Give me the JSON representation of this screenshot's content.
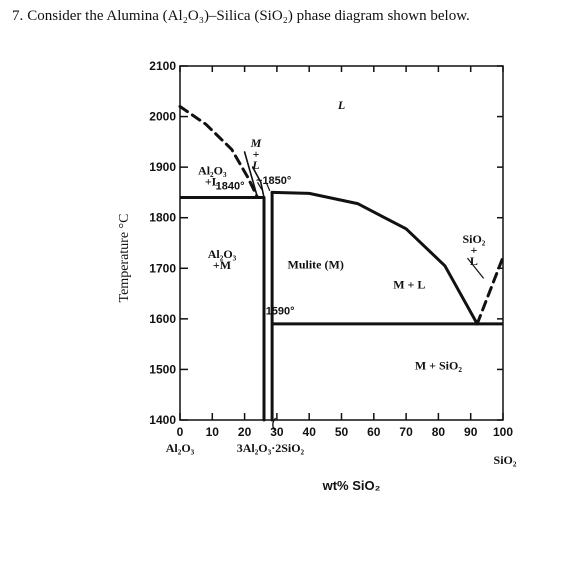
{
  "question": {
    "number": "7.",
    "text": "Consider the Alumina (Al₂O₃)–Silica (SiO₂) phase diagram shown below."
  },
  "chart_data": {
    "type": "phase-diagram",
    "xlabel": "wt% SiO₂",
    "ylabel": "Temperature °C",
    "xlim": [
      0,
      100
    ],
    "ylim": [
      1400,
      2100
    ],
    "x_ticks": [
      "0",
      "10",
      "20",
      "30",
      "40",
      "50",
      "60",
      "70",
      "80",
      "90",
      "100"
    ],
    "y_ticks": [
      "1400",
      "1500",
      "1600",
      "1700",
      "1800",
      "1900",
      "2000",
      "2100"
    ],
    "x_end_labels": {
      "left": "Al₂O₃",
      "right": "SiO₂"
    },
    "compound_label": "3Al₂O₃·2SiO₂",
    "phase_regions": [
      {
        "name": "liquid",
        "label": "L",
        "x": 50,
        "y": 2015
      },
      {
        "name": "alumina-liquid",
        "label": "Al₂O₃\n+L",
        "x": 10,
        "y": 1885
      },
      {
        "name": "mullite-liquid-narrow",
        "label": "M\n+\nL",
        "x": 23.5,
        "y": 1940
      },
      {
        "name": "alumina-mullite",
        "label": "Al₂O₃\n+M",
        "x": 13,
        "y": 1720
      },
      {
        "name": "mullite",
        "label": "Mulite (M)",
        "x": 42,
        "y": 1700
      },
      {
        "name": "mullite-liquid",
        "label": "M + L",
        "x": 71,
        "y": 1660
      },
      {
        "name": "silica-liquid",
        "label": "SiO₂\n+\nL",
        "x": 91,
        "y": 1750
      },
      {
        "name": "mullite-silica",
        "label": "M + SiO₂",
        "x": 80,
        "y": 1500
      }
    ],
    "annotations": [
      {
        "label": "1840°",
        "x": 15.5,
        "y": 1856
      },
      {
        "label": "~1850°",
        "x": 29,
        "y": 1867
      },
      {
        "label": "1590°",
        "x": 31,
        "y": 1609
      }
    ],
    "boundaries": {
      "liquidus_alumina": {
        "style": "dashed",
        "points": [
          [
            0,
            2020
          ],
          [
            8,
            1985
          ],
          [
            16,
            1935
          ],
          [
            21,
            1880
          ],
          [
            24,
            1840
          ]
        ]
      },
      "peritectic": {
        "y": 1840,
        "x_range": [
          0,
          26
        ]
      },
      "mullite_left": {
        "points": [
          [
            26,
            1840
          ],
          [
            26,
            1400
          ]
        ]
      },
      "mullite_right": {
        "points": [
          [
            28.5,
            1850
          ],
          [
            28.5,
            1400
          ]
        ]
      },
      "liquidus_mullite": {
        "points": [
          [
            28.5,
            1850
          ],
          [
            40,
            1848
          ],
          [
            55,
            1828
          ],
          [
            70,
            1778
          ],
          [
            82,
            1705
          ],
          [
            92,
            1590
          ]
        ]
      },
      "liquidus_silica": {
        "style": "dashed",
        "points": [
          [
            92,
            1590
          ],
          [
            100,
            1722
          ]
        ]
      },
      "eutectic": {
        "y": 1590,
        "x_range": [
          28.5,
          100
        ]
      },
      "narrow_field_left": {
        "points": [
          [
            20,
            1930
          ],
          [
            24,
            1840
          ]
        ]
      },
      "narrow_field_right": {
        "points": [
          [
            22.5,
            1900
          ],
          [
            25,
            1870
          ],
          [
            26,
            1840
          ]
        ]
      }
    }
  }
}
